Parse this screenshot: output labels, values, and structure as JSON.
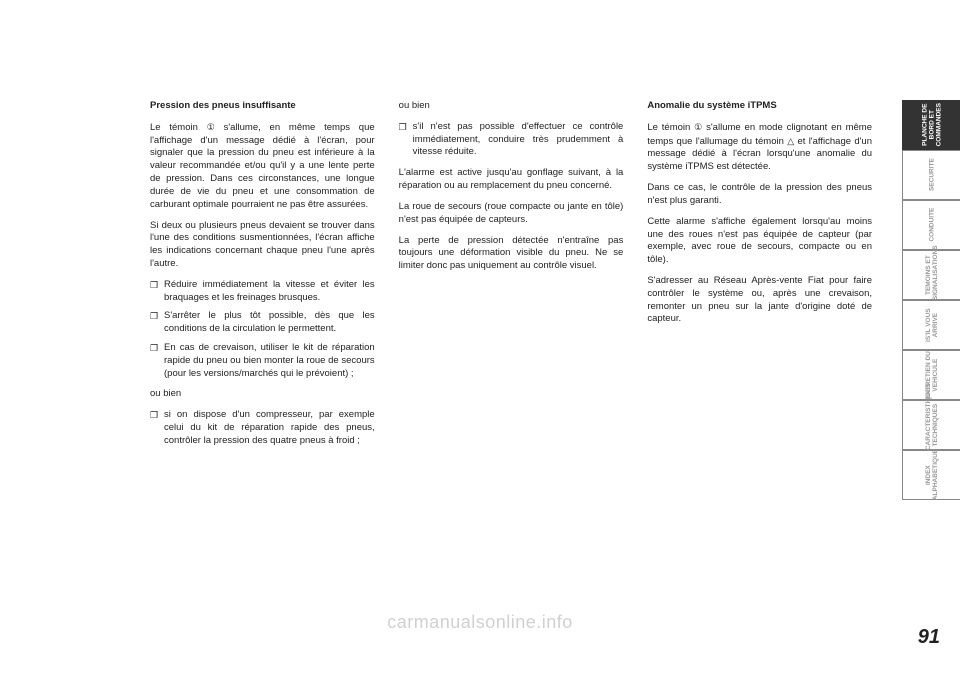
{
  "page_number": "91",
  "watermark": "carmanualsonline.info",
  "col1": {
    "heading": "Pression des pneus insuffisante",
    "p1_a": "Le témoin ",
    "p1_b": " s'allume, en même temps que l'affichage d'un message dédié à l'écran, pour signaler que la pression du pneu est inférieure à la valeur recommandée et/ou qu'il y a une lente perte de pression. Dans ces circonstances, une longue durée de vie du pneu et une consommation de carburant optimale pourraient ne pas être assurées.",
    "p2": "Si deux ou plusieurs pneus devaient se trouver dans l'une des conditions susmentionnées, l'écran affiche les indications concernant chaque pneu l'une après l'autre.",
    "b1": "Réduire immédiatement la vitesse et éviter les braquages et les freinages brusques.",
    "b2": "S'arrêter le plus tôt possible, dès que les conditions de la circulation le permettent.",
    "b3": "En cas de crevaison, utiliser le kit de réparation rapide du pneu ou bien monter la roue de secours (pour les versions/marchés qui le prévoient) ;",
    "oubien": "ou bien",
    "b4": "si on dispose d'un compresseur, par exemple celui du kit de réparation rapide des pneus, contrôler la pression des quatre pneus à froid ;"
  },
  "col2": {
    "oubien": "ou bien",
    "b1": "s'il n'est pas possible d'effectuer ce contrôle immédiatement, conduire très prudemment à vitesse réduite.",
    "p1": "L'alarme est active jusqu'au gonflage suivant, à la réparation ou au remplacement du pneu concerné.",
    "p2": "La roue de secours (roue compacte ou jante en tôle) n'est pas équipée de capteurs.",
    "p3": "La perte de pression détectée n'entraîne pas toujours une déformation visible du pneu. Ne se limiter donc pas uniquement au contrôle visuel."
  },
  "col3": {
    "heading": "Anomalie du système iTPMS",
    "p1_a": "Le témoin ",
    "p1_b": " s'allume en mode clignotant en même temps que l'allumage du témoin ",
    "p1_c": " et l'affichage d'un message dédié à l'écran lorsqu'une anomalie du système iTPMS est détectée.",
    "p2": "Dans ce cas, le contrôle de la pression des pneus n'est plus garanti.",
    "p3": "Cette alarme s'affiche également lorsqu'au moins une des roues n'est pas équipée de capteur (par exemple, avec roue de secours, compacte ou en tôle).",
    "p4": "S'adresser au Réseau Après-vente Fiat pour faire contrôler le système ou, après une crevaison, remonter un pneu sur la jante d'origine doté de capteur."
  },
  "tabs": {
    "t1": "PLANCHE DE\nBORD ET\nCOMMANDES",
    "t2": "SECURITE",
    "t3": "CONDUITE",
    "t4": "TEMOINS ET\nSIGNALISATIONS",
    "t5": "IS'IL VOUS\nARRIVE",
    "t6": "ENTRETIEN DU\nVEHICULE",
    "t7": "CARACTERISTIQUES\nTECHNIQUES",
    "t8": "INDEX\nALPHABETIQUE"
  },
  "icons": {
    "circle_exclaim": "①",
    "triangle": "△"
  }
}
